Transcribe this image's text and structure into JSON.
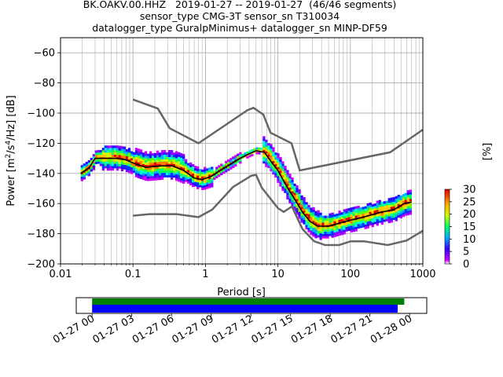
{
  "title_lines": [
    "BK.OAKV.00.HHZ   2019-01-27 -- 2019-01-27  (46/46 segments)",
    "sensor_type CMG-3T sensor_sn T310034",
    "datalogger_type GuralpMinimus+ datalogger_sn MINP-DF59"
  ],
  "chart_data": [
    {
      "type": "heatmap",
      "xlabel": "Period [s]",
      "ylabel": "Power [m^2/s^4/Hz] [dB]",
      "xscale": "log",
      "xlim": [
        0.01,
        1000
      ],
      "ylim": [
        -200,
        -50
      ],
      "xtick_labels": [
        "0.01",
        "0.1",
        "1",
        "10",
        "100",
        "1000"
      ],
      "ytick_values": [
        -200,
        -180,
        -160,
        -140,
        -120,
        -100,
        -80,
        -60
      ],
      "grid": true,
      "colorbar": {
        "label": "[%]",
        "ticks": [
          0,
          5,
          10,
          15,
          20,
          25,
          30
        ],
        "range": [
          0,
          30
        ]
      },
      "mode_curve": [
        [
          0.019,
          -140
        ],
        [
          0.025,
          -136
        ],
        [
          0.03,
          -130
        ],
        [
          0.04,
          -130
        ],
        [
          0.06,
          -130
        ],
        [
          0.08,
          -131
        ],
        [
          0.1,
          -133
        ],
        [
          0.15,
          -136
        ],
        [
          0.25,
          -135
        ],
        [
          0.35,
          -135
        ],
        [
          0.5,
          -138
        ],
        [
          0.7,
          -143
        ],
        [
          0.9,
          -144
        ],
        [
          1.2,
          -142
        ],
        [
          1.6,
          -138
        ],
        [
          2.2,
          -134
        ],
        [
          3,
          -130
        ],
        [
          4,
          -127
        ],
        [
          5,
          -125
        ],
        [
          6.5,
          -126
        ],
        [
          8,
          -132
        ],
        [
          10,
          -138
        ],
        [
          13,
          -148
        ],
        [
          17,
          -157
        ],
        [
          22,
          -166
        ],
        [
          28,
          -172
        ],
        [
          35,
          -175
        ],
        [
          50,
          -175
        ],
        [
          70,
          -173
        ],
        [
          100,
          -171
        ],
        [
          150,
          -169
        ],
        [
          250,
          -166
        ],
        [
          400,
          -164
        ],
        [
          550,
          -160
        ],
        [
          700,
          -159
        ]
      ],
      "noise_model_high": [
        [
          0.1,
          -91
        ],
        [
          0.22,
          -97
        ],
        [
          0.32,
          -110
        ],
        [
          0.8,
          -120
        ],
        [
          3.8,
          -98
        ],
        [
          4.6,
          -96.5
        ],
        [
          6.3,
          -101
        ],
        [
          7.9,
          -113
        ],
        [
          15.4,
          -120
        ],
        [
          20,
          -138
        ],
        [
          354,
          -126
        ],
        [
          1000,
          -111
        ]
      ],
      "noise_model_low": [
        [
          0.1,
          -168
        ],
        [
          0.17,
          -167
        ],
        [
          0.4,
          -167
        ],
        [
          0.8,
          -169
        ],
        [
          1.24,
          -164
        ],
        [
          2.4,
          -149
        ],
        [
          4.3,
          -141.5
        ],
        [
          5,
          -141
        ],
        [
          6,
          -149.5
        ],
        [
          10,
          -163
        ],
        [
          12,
          -165.5
        ],
        [
          15.6,
          -162
        ],
        [
          21.9,
          -177
        ],
        [
          31.6,
          -185
        ],
        [
          45,
          -187.5
        ],
        [
          70,
          -187.5
        ],
        [
          101,
          -185
        ],
        [
          154,
          -185
        ],
        [
          328,
          -187.5
        ],
        [
          600,
          -184.5
        ],
        [
          1000,
          -178
        ]
      ]
    },
    {
      "type": "timeline",
      "tick_labels": [
        "01-27 00",
        "01-27 03",
        "01-27 06",
        "01-27 09",
        "01-27 12",
        "01-27 15",
        "01-27 18",
        "01-27 21",
        "01-28 00"
      ],
      "range_hours": [
        -1.2,
        25.3
      ],
      "data_coverage_hours": [
        0,
        23.6
      ],
      "psd_coverage_hours": [
        0,
        23.1
      ],
      "colors": {
        "data": "#008000",
        "psd": "#0000ff"
      }
    }
  ]
}
